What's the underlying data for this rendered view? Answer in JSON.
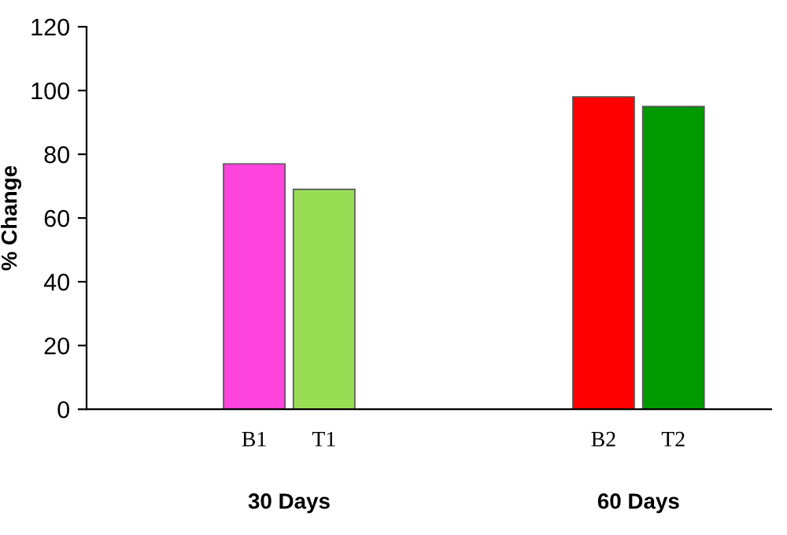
{
  "chart_data": {
    "type": "bar",
    "ylabel": "% Change",
    "categories": [
      "B1",
      "T1",
      null,
      null,
      null,
      "B2",
      "T2"
    ],
    "values": [
      77,
      69,
      null,
      null,
      null,
      98,
      95
    ],
    "colors": [
      "#ff44dd",
      "#99dd55",
      "#ffffff",
      "#ffffff",
      "#ffffff",
      "#ff0000",
      "#009900"
    ],
    "ylim": [
      0,
      120
    ],
    "yticks": [
      0,
      20,
      40,
      60,
      80,
      100,
      120
    ],
    "grid": false,
    "annotations": [
      "30 Days",
      "60 Days"
    ]
  }
}
